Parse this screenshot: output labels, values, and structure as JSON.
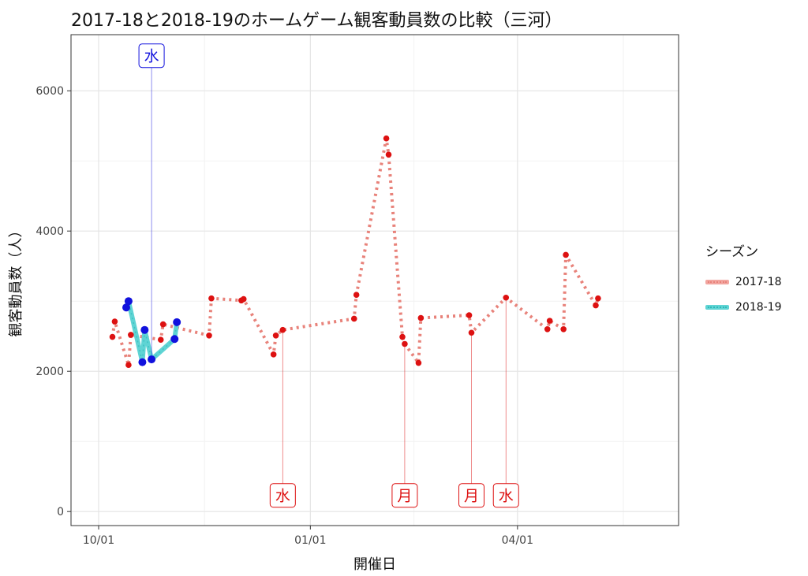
{
  "chart_data": {
    "type": "line",
    "title": "2017-18と2018-19のホームゲーム観客動員数の比較（三河）",
    "xlabel": "開催日",
    "ylabel": "観客動員数（人）",
    "ylim": [
      -200,
      6800
    ],
    "xlim": [
      -12,
      252
    ],
    "x_unit": "days since 10/01",
    "grid": true,
    "x_ticks": [
      {
        "value": 0,
        "label": "10/01"
      },
      {
        "value": 92,
        "label": "01/01"
      },
      {
        "value": 182,
        "label": "04/01"
      }
    ],
    "y_ticks": [
      {
        "value": 0,
        "label": "0"
      },
      {
        "value": 2000,
        "label": "2000"
      },
      {
        "value": 4000,
        "label": "4000"
      },
      {
        "value": 6000,
        "label": "6000"
      }
    ],
    "legend": {
      "title": "シーズン",
      "position": "right",
      "entries": [
        "2017-18",
        "2018-19"
      ]
    },
    "series": [
      {
        "name": "2017-18",
        "color": "#e8827a",
        "point_color": "#dd1111",
        "line": "dotted",
        "points": [
          {
            "x": 6,
            "y": 2490
          },
          {
            "x": 7,
            "y": 2710
          },
          {
            "x": 13,
            "y": 2090
          },
          {
            "x": 14,
            "y": 2520
          },
          {
            "x": 27,
            "y": 2450
          },
          {
            "x": 28,
            "y": 2670
          },
          {
            "x": 48,
            "y": 2510
          },
          {
            "x": 49,
            "y": 3040
          },
          {
            "x": 62,
            "y": 3010
          },
          {
            "x": 63,
            "y": 3030
          },
          {
            "x": 76,
            "y": 2240
          },
          {
            "x": 77,
            "y": 2510
          },
          {
            "x": 80,
            "y": 2590
          },
          {
            "x": 111,
            "y": 2750
          },
          {
            "x": 112,
            "y": 3090
          },
          {
            "x": 125,
            "y": 5320
          },
          {
            "x": 126,
            "y": 5090
          },
          {
            "x": 132,
            "y": 2490
          },
          {
            "x": 133,
            "y": 2390
          },
          {
            "x": 139,
            "y": 2120
          },
          {
            "x": 140,
            "y": 2760
          },
          {
            "x": 161,
            "y": 2800
          },
          {
            "x": 162,
            "y": 2550
          },
          {
            "x": 177,
            "y": 3050
          },
          {
            "x": 195,
            "y": 2600
          },
          {
            "x": 196,
            "y": 2720
          },
          {
            "x": 202,
            "y": 2600
          },
          {
            "x": 203,
            "y": 3660
          },
          {
            "x": 216,
            "y": 2940
          },
          {
            "x": 217,
            "y": 3040
          }
        ]
      },
      {
        "name": "2018-19",
        "color": "#5fd4d4",
        "point_color": "#1111dd",
        "line": "solid",
        "points": [
          {
            "x": 12,
            "y": 2910
          },
          {
            "x": 13,
            "y": 3000
          },
          {
            "x": 19,
            "y": 2130
          },
          {
            "x": 20,
            "y": 2590
          },
          {
            "x": 23,
            "y": 2170
          },
          {
            "x": 33,
            "y": 2460
          },
          {
            "x": 34,
            "y": 2700
          }
        ]
      }
    ],
    "annotations": [
      {
        "label": "水",
        "x": 23,
        "y_from": 2170,
        "y_to": 6500,
        "series": "2018-19"
      },
      {
        "label": "水",
        "x": 80,
        "y_from": 2590,
        "y_to": 230,
        "series": "2017-18"
      },
      {
        "label": "月",
        "x": 133,
        "y_from": 2390,
        "y_to": 230,
        "series": "2017-18"
      },
      {
        "label": "月",
        "x": 162,
        "y_from": 2550,
        "y_to": 230,
        "series": "2017-18"
      },
      {
        "label": "水",
        "x": 177,
        "y_from": 3050,
        "y_to": 230,
        "series": "2017-18"
      }
    ]
  }
}
